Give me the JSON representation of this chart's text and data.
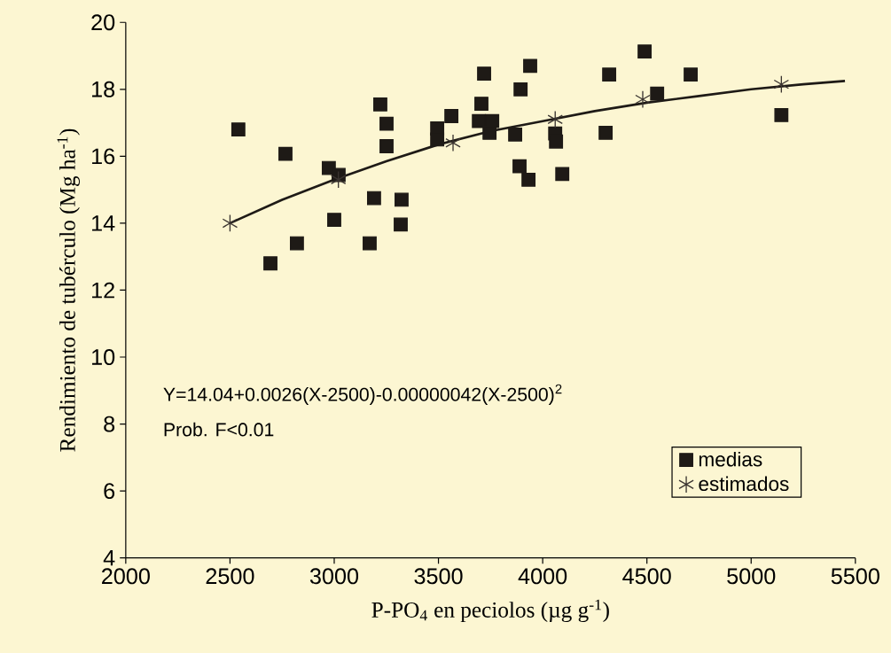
{
  "chart_data": {
    "type": "scatter",
    "xlabel": "P-PO$_{4}$ en peciolos  (µg g$^{-1}$)",
    "ylabel": "Rendimiento de tubérculo (Mg ha$^{-1}$)",
    "annotations": [
      "Y=14.04+0.0026(X-2500)-0.00000042(X-2500)$^{2}$",
      "Prob. F<0.01"
    ],
    "xlim": [
      2000,
      5500
    ],
    "xticks": [
      2000,
      2500,
      3000,
      3500,
      4000,
      4500,
      5000,
      5500
    ],
    "ylim": [
      4,
      20
    ],
    "yticks": [
      4,
      6,
      8,
      10,
      12,
      14,
      16,
      18,
      20
    ],
    "grid": false,
    "legend": "bottom right",
    "series": [
      {
        "name": "medias",
        "type": "scatter",
        "marker": "square",
        "color": "#1e1a16",
        "x": [
          2540,
          2766,
          2694,
          2821,
          2974,
          3021,
          3000,
          3170,
          3191,
          3221,
          3251,
          3251,
          3323,
          3319,
          3494,
          3494,
          3562,
          3719,
          3706,
          3694,
          3758,
          3745,
          3868,
          3894,
          3940,
          3889,
          3932,
          4060,
          4064,
          4094,
          4319,
          4302,
          4489,
          4549,
          4710,
          5145
        ],
        "values": [
          16.8,
          16.07,
          12.8,
          13.4,
          15.65,
          15.44,
          14.1,
          13.4,
          14.75,
          17.55,
          16.97,
          16.3,
          14.7,
          13.96,
          16.83,
          16.5,
          17.2,
          18.47,
          17.57,
          17.05,
          17.05,
          16.7,
          16.65,
          18.0,
          18.7,
          15.7,
          15.3,
          16.68,
          16.44,
          15.47,
          18.44,
          16.7,
          19.13,
          17.87,
          18.44,
          17.23
        ]
      },
      {
        "name": "estimados",
        "type": "scatter",
        "marker": "cross",
        "color": "#3a3430",
        "x": [
          2500,
          3020,
          3570,
          4060,
          4480,
          5145
        ],
        "values": [
          14.0,
          15.3,
          16.4,
          17.1,
          17.7,
          18.15
        ]
      },
      {
        "type": "line",
        "line_style": "solid",
        "color": "#1e1a16",
        "x": [
          2500,
          2750,
          3000,
          3250,
          3500,
          3750,
          4000,
          4250,
          4500,
          4750,
          5000,
          5250,
          5450
        ],
        "values": [
          14.0,
          14.7,
          15.3,
          15.85,
          16.35,
          16.75,
          17.05,
          17.35,
          17.6,
          17.8,
          18.0,
          18.15,
          18.25
        ]
      }
    ]
  }
}
